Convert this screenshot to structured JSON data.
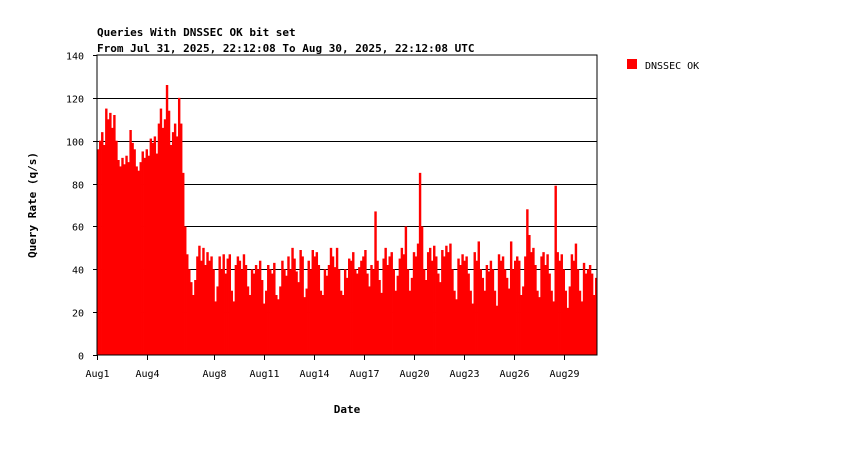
{
  "chart_data": {
    "type": "bar",
    "title": "Queries With DNSSEC OK bit set",
    "subtitle": "From Jul 31, 2025, 22:12:08 To Aug 30, 2025, 22:12:08 UTC",
    "xlabel": "Date",
    "ylabel": "Query Rate (q/s)",
    "ylim": [
      0,
      140
    ],
    "yticks": [
      0,
      20,
      40,
      60,
      80,
      100,
      120,
      140
    ],
    "xlim_days": [
      0,
      30
    ],
    "xticks": [
      {
        "label": "Aug1",
        "day": 0
      },
      {
        "label": "Aug4",
        "day": 3
      },
      {
        "label": "Aug8",
        "day": 7
      },
      {
        "label": "Aug11",
        "day": 10
      },
      {
        "label": "Aug14",
        "day": 13
      },
      {
        "label": "Aug17",
        "day": 16
      },
      {
        "label": "Aug20",
        "day": 19
      },
      {
        "label": "Aug23",
        "day": 22
      },
      {
        "label": "Aug26",
        "day": 25
      },
      {
        "label": "Aug29",
        "day": 28
      }
    ],
    "grid": true,
    "legend_position": "right",
    "series": [
      {
        "name": "DNSSEC OK",
        "color": "#ff0000",
        "values": [
          96,
          100,
          104,
          98,
          115,
          110,
          113,
          106,
          112,
          100,
          91,
          88,
          92,
          89,
          93,
          90,
          105,
          99,
          96,
          88,
          86,
          90,
          95,
          92,
          96,
          93,
          101,
          99,
          102,
          94,
          108,
          115,
          106,
          110,
          126,
          114,
          98,
          104,
          108,
          102,
          120,
          108,
          85,
          60,
          47,
          40,
          34,
          28,
          35,
          46,
          51,
          44,
          50,
          42,
          48,
          44,
          46,
          40,
          25,
          32,
          46,
          40,
          47,
          38,
          45,
          47,
          30,
          25,
          42,
          46,
          44,
          40,
          47,
          42,
          32,
          28,
          40,
          38,
          42,
          40,
          44,
          35,
          24,
          30,
          42,
          40,
          38,
          43,
          28,
          26,
          32,
          44,
          40,
          37,
          46,
          40,
          50,
          45,
          39,
          34,
          49,
          46,
          27,
          31,
          44,
          40,
          49,
          46,
          48,
          42,
          30,
          28,
          40,
          37,
          42,
          50,
          46,
          41,
          50,
          40,
          30,
          28,
          40,
          36,
          45,
          44,
          48,
          40,
          38,
          41,
          44,
          46,
          49,
          38,
          32,
          42,
          40,
          67,
          44,
          35,
          29,
          45,
          50,
          42,
          46,
          48,
          40,
          30,
          37,
          45,
          50,
          47,
          60,
          40,
          30,
          36,
          48,
          46,
          52,
          85,
          60,
          40,
          35,
          48,
          50,
          44,
          51,
          46,
          38,
          34,
          49,
          46,
          51,
          48,
          52,
          40,
          30,
          26,
          45,
          42,
          47,
          44,
          46,
          38,
          30,
          24,
          48,
          44,
          53,
          40,
          36,
          30,
          42,
          39,
          44,
          40,
          30,
          23,
          47,
          44,
          46,
          40,
          36,
          31,
          53,
          40,
          44,
          46,
          44,
          28,
          32,
          46,
          68,
          56,
          48,
          50,
          42,
          30,
          27,
          46,
          48,
          42,
          47,
          38,
          30,
          25,
          79,
          48,
          44,
          47,
          40,
          30,
          22,
          32,
          47,
          44,
          52,
          40,
          30,
          25,
          43,
          38,
          40,
          42,
          38,
          28,
          36
        ]
      }
    ]
  }
}
